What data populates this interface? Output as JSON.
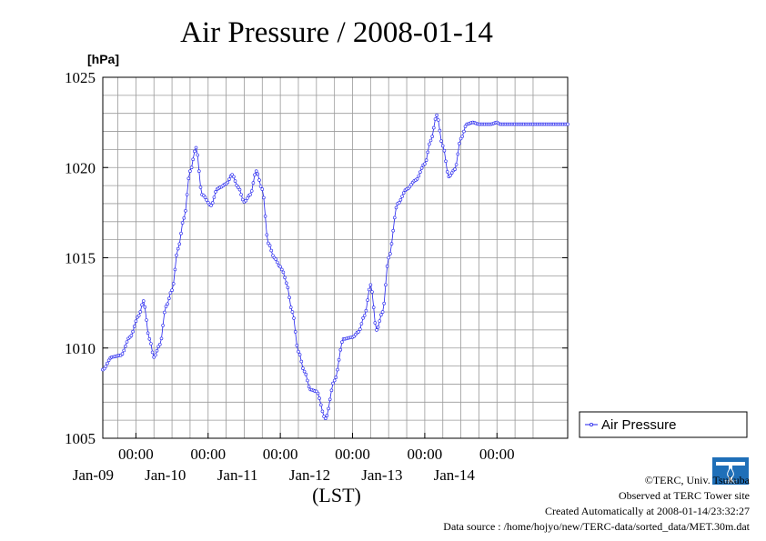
{
  "accent_color": "#2222ee",
  "title": "Air Pressure / 2008-01-14",
  "chart_data": {
    "type": "line",
    "title": "Air Pressure / 2008-01-14",
    "xlabel": "(LST)",
    "ylabel": "[hPa]",
    "ylim": [
      1005,
      1025
    ],
    "yticks": [
      "1005",
      "1010",
      "1015",
      "1020",
      "1025"
    ],
    "xlim_days": [
      "2008-01-08 13:00",
      "2008-01-14 23:30"
    ],
    "x_tick_labels": [
      {
        "time": "00:00",
        "date": "Jan-09"
      },
      {
        "time": "00:00",
        "date": "Jan-10"
      },
      {
        "time": "00:00",
        "date": "Jan-11"
      },
      {
        "time": "00:00",
        "date": "Jan-12"
      },
      {
        "time": "00:00",
        "date": "Jan-13"
      },
      {
        "time": "00:00",
        "date": "Jan-14"
      }
    ],
    "x_tick_values": [
      "2008-01-09 00:00",
      "2008-01-10 00:00",
      "2008-01-11 00:00",
      "2008-01-12 00:00",
      "2008-01-13 00:00",
      "2008-01-14 00:00"
    ],
    "grid": true,
    "legend_position": "right-bottom",
    "series": [
      {
        "name": "Air Pressure",
        "color": "#2222ee",
        "x": [
          "2008-01-08 13:00",
          "2008-01-08 16:00",
          "2008-01-08 19:00",
          "2008-01-08 22:00",
          "2008-01-09 01:00",
          "2008-01-09 02:30",
          "2008-01-09 04:30",
          "2008-01-09 06:00",
          "2008-01-09 08:00",
          "2008-01-09 10:00",
          "2008-01-09 12:00",
          "2008-01-09 14:00",
          "2008-01-09 16:00",
          "2008-01-09 18:00",
          "2008-01-09 20:00",
          "2008-01-09 22:00",
          "2008-01-10 01:00",
          "2008-01-10 03:00",
          "2008-01-10 04:00",
          "2008-01-10 06:00",
          "2008-01-10 08:00",
          "2008-01-10 10:00",
          "2008-01-10 12:00",
          "2008-01-10 14:00",
          "2008-01-10 16:00",
          "2008-01-10 18:00",
          "2008-01-10 20:00",
          "2008-01-10 22:00",
          "2008-01-11 00:00",
          "2008-01-11 01:00",
          "2008-01-11 02:00",
          "2008-01-11 04:00",
          "2008-01-11 06:00",
          "2008-01-11 08:00",
          "2008-01-11 10:00",
          "2008-01-11 12:00",
          "2008-01-11 15:00",
          "2008-01-11 18:00",
          "2008-01-11 21:00",
          "2008-01-12 00:00",
          "2008-01-12 02:00",
          "2008-01-12 04:00",
          "2008-01-12 06:00",
          "2008-01-12 08:00",
          "2008-01-12 10:00",
          "2008-01-12 12:00",
          "2008-01-12 15:00",
          "2008-01-12 18:00",
          "2008-01-12 21:00",
          "2008-01-13 00:00",
          "2008-01-13 02:00",
          "2008-01-13 04:00",
          "2008-01-13 06:00",
          "2008-01-13 08:00",
          "2008-01-13 10:00",
          "2008-01-13 12:00",
          "2008-01-13 14:00",
          "2008-01-13 16:00",
          "2008-01-13 18:00",
          "2008-01-13 20:00",
          "2008-01-13 22:00",
          "2008-01-14 00:00",
          "2008-01-14 01:00",
          "2008-01-14 02:00",
          "2008-01-14 04:00",
          "2008-01-14 06:00",
          "2008-01-14 08:00",
          "2008-01-14 10:00",
          "2008-01-14 12:00",
          "2008-01-14 14:00",
          "2008-01-14 16:00",
          "2008-01-14 18:00",
          "2008-01-14 20:00",
          "2008-01-14 22:00",
          "2008-01-14 23:30"
        ],
        "values": [
          1008.8,
          1009.5,
          1009.6,
          1010.6,
          1011.8,
          1012.6,
          1010.5,
          1009.5,
          1010.2,
          1012.3,
          1013.2,
          1015.5,
          1017.2,
          1019.8,
          1021.1,
          1018.5,
          1017.9,
          1018.8,
          1018.9,
          1019.1,
          1019.6,
          1018.9,
          1018.1,
          1018.5,
          1019.8,
          1018.8,
          1015.8,
          1015.0,
          1014.5,
          1014.2,
          1013.6,
          1012.0,
          1009.8,
          1008.7,
          1007.7,
          1007.6,
          1006.1,
          1008.2,
          1010.5,
          1010.6,
          1010.9,
          1011.8,
          1013.5,
          1011.0,
          1012.0,
          1015.0,
          1018.0,
          1018.8,
          1019.3,
          1020.2,
          1021.5,
          1022.9,
          1021.2,
          1019.5,
          1019.9,
          1021.6,
          1022.4,
          1022.5,
          1022.4,
          1022.4,
          1022.4,
          1022.5,
          1022.4,
          1022.4,
          1022.4,
          1022.4,
          1022.4,
          1022.4,
          1022.4,
          1022.4,
          1022.4,
          1022.4,
          1022.4,
          1022.4,
          1022.4
        ]
      }
    ]
  },
  "credits": {
    "copyright": "©TERC, Univ. Tsukuba",
    "observed": "Observed at TERC Tower site",
    "created": "Created Automatically at 2008-01-14/23:32:27",
    "source": "Data source : /home/hojyo/new/TERC-data/sorted_data/MET.30m.dat",
    "logo_text": "TERC"
  }
}
